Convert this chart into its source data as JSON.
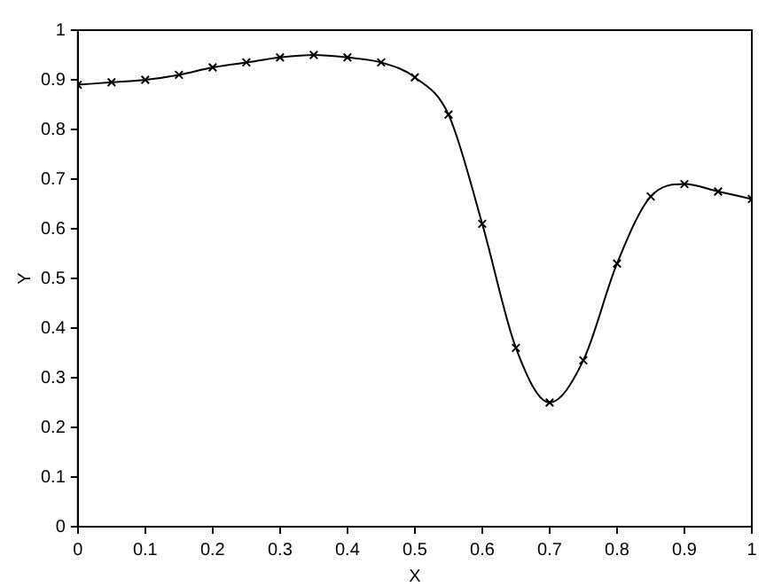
{
  "chart_data": {
    "type": "line",
    "xlabel": "X",
    "ylabel": "Y",
    "x": [
      0,
      0.05,
      0.1,
      0.15,
      0.2,
      0.25,
      0.3,
      0.35,
      0.4,
      0.45,
      0.5,
      0.55,
      0.6,
      0.65,
      0.7,
      0.75,
      0.8,
      0.85,
      0.9,
      0.95,
      1
    ],
    "series": [
      {
        "color": "#000000",
        "values": [
          0.89,
          0.895,
          0.9,
          0.91,
          0.925,
          0.935,
          0.945,
          0.95,
          0.945,
          0.935,
          0.905,
          0.83,
          0.61,
          0.36,
          0.25,
          0.335,
          0.53,
          0.665,
          0.69,
          0.675,
          0.66
        ]
      }
    ],
    "xlim": [
      0,
      1
    ],
    "ylim": [
      0,
      1
    ],
    "xticks": [
      0,
      0.1,
      0.2,
      0.3,
      0.4,
      0.5,
      0.6,
      0.7,
      0.8,
      0.9,
      1
    ],
    "yticks": [
      0,
      0.1,
      0.2,
      0.3,
      0.4,
      0.5,
      0.6,
      0.7,
      0.8,
      0.9,
      1
    ],
    "grid": false,
    "legend": false,
    "marker": "cross",
    "line_style": "solid"
  }
}
